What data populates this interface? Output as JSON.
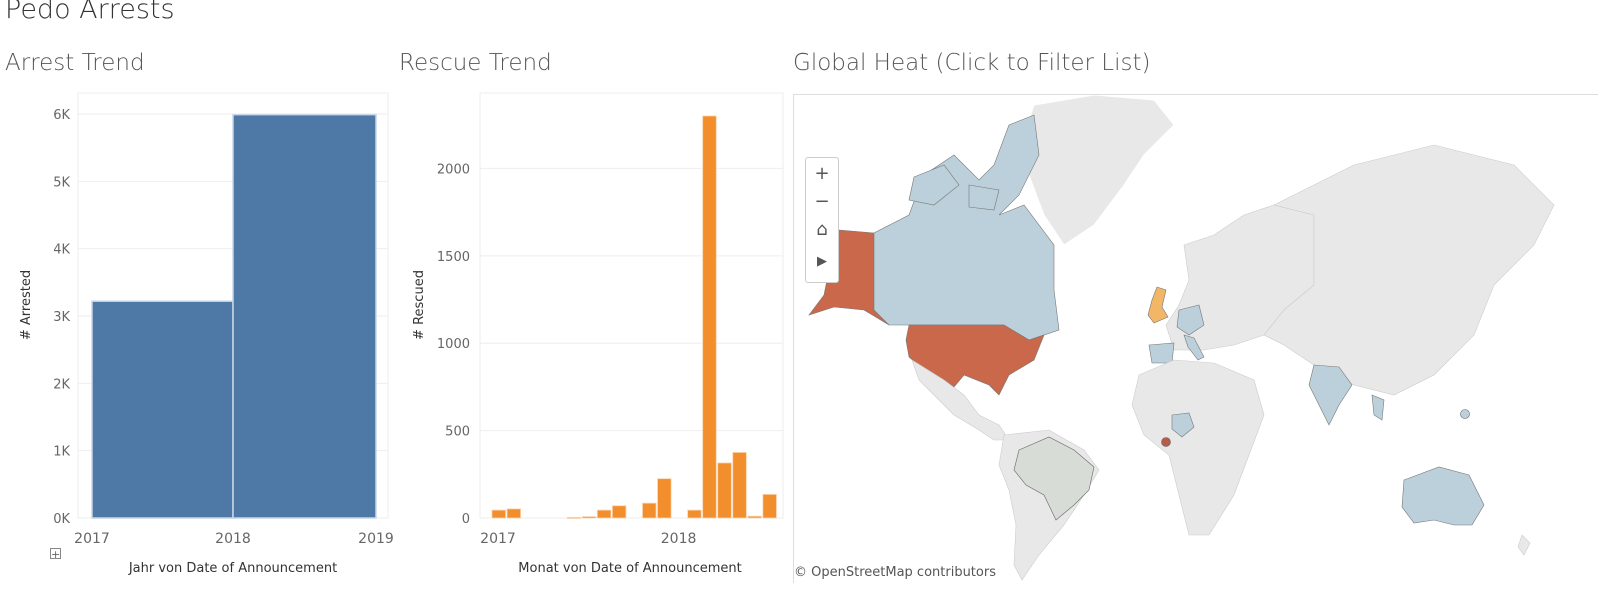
{
  "dashboard": {
    "title": "Pedo Arrests"
  },
  "charts": {
    "arrest": {
      "sheet_title": "Arrest Trend"
    },
    "rescue": {
      "sheet_title": "Rescue Trend"
    },
    "map": {
      "sheet_title": "Global Heat (Click to Filter List)",
      "attribution": "© OpenStreetMap contributors",
      "controls": {
        "zoom_in": "+",
        "zoom_out": "−",
        "home": "⌂",
        "expand": "▶"
      },
      "colors": {
        "land": "#e8e8e8",
        "low": "#bcd0db",
        "mid": "#f2b766",
        "high": "#c9684a",
        "neutral": "#d8dcd6"
      }
    }
  },
  "chart_data": [
    {
      "type": "bar",
      "title": "Arrest Trend",
      "xlabel": "Jahr von Date of Announcement",
      "ylabel": "# Arrested",
      "x_ticks": [
        "2017",
        "2018",
        "2019"
      ],
      "y_ticks": [
        "0K",
        "1K",
        "2K",
        "3K",
        "4K",
        "5K",
        "6K"
      ],
      "ylim": [
        0,
        6000
      ],
      "bars": [
        {
          "label": "2017",
          "value": 3220
        },
        {
          "label": "2018",
          "value": 5990
        }
      ],
      "color": "#4e79a7"
    },
    {
      "type": "bar",
      "title": "Rescue Trend",
      "xlabel": "Monat von Date of Announcement",
      "ylabel": "# Rescued",
      "x_ticks": [
        "2017",
        "2018"
      ],
      "y_ticks": [
        "0",
        "500",
        "1000",
        "1500",
        "2000"
      ],
      "ylim": [
        0,
        2300
      ],
      "bars": [
        {
          "month": 1,
          "value": 45
        },
        {
          "month": 2,
          "value": 52
        },
        {
          "month": 6,
          "value": 3
        },
        {
          "month": 7,
          "value": 8
        },
        {
          "month": 8,
          "value": 45
        },
        {
          "month": 9,
          "value": 70
        },
        {
          "month": 11,
          "value": 85
        },
        {
          "month": 12,
          "value": 225
        },
        {
          "month": 14,
          "value": 45
        },
        {
          "month": 15,
          "value": 2300
        },
        {
          "month": 16,
          "value": 315
        },
        {
          "month": 17,
          "value": 375
        },
        {
          "month": 18,
          "value": 10
        },
        {
          "month": 19,
          "value": 135
        }
      ],
      "color": "#f28e2b"
    }
  ]
}
